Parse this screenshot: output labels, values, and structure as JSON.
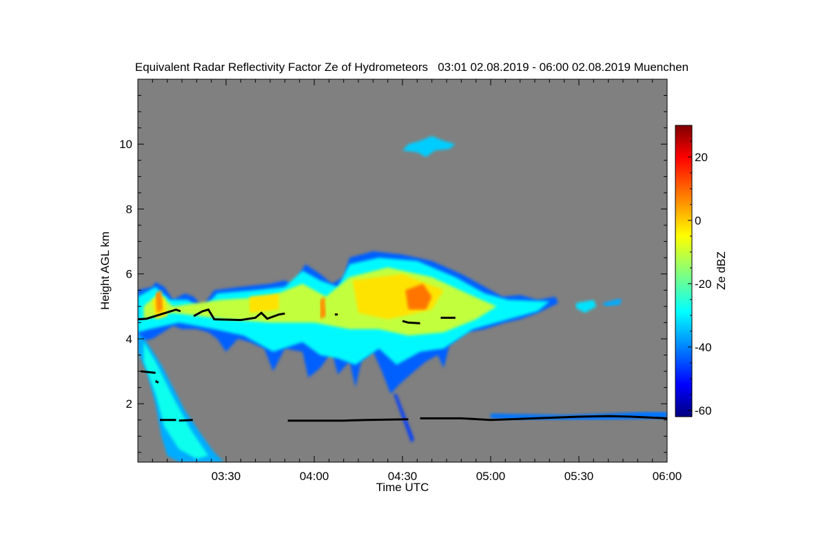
{
  "chart_data": {
    "type": "heatmap",
    "title": "Equivalent Radar Reflectivity Factor Ze of Hydrometeors   03:01 02.08.2019 - 06:00 02.08.2019 Muenchen",
    "xlabel": "Time UTC",
    "ylabel": "Height AGL km",
    "x_unit": "minutes after 03:00 UTC",
    "xlim": [
      0,
      180
    ],
    "ylim": [
      0.2,
      12
    ],
    "x_ticks": [
      {
        "v": 30,
        "label": "03:30"
      },
      {
        "v": 60,
        "label": "04:00"
      },
      {
        "v": 90,
        "label": "04:30"
      },
      {
        "v": 120,
        "label": "05:00"
      },
      {
        "v": 150,
        "label": "05:30"
      },
      {
        "v": 180,
        "label": "06:00"
      }
    ],
    "y_ticks": [
      {
        "v": 2,
        "label": "2"
      },
      {
        "v": 4,
        "label": "4"
      },
      {
        "v": 6,
        "label": "6"
      },
      {
        "v": 8,
        "label": "8"
      },
      {
        "v": 10,
        "label": "10"
      }
    ],
    "background_color": "#808080",
    "colorbar": {
      "label": "Ze dBZ",
      "range": [
        -62,
        30
      ],
      "colormap": "jet",
      "ticks": [
        {
          "v": 20,
          "label": "20"
        },
        {
          "v": 0,
          "label": "0"
        },
        {
          "v": -20,
          "label": "-20"
        },
        {
          "v": -40,
          "label": "-40"
        },
        {
          "v": -60,
          "label": "-60"
        }
      ]
    },
    "echo_regions": [
      {
        "name": "main-cloud-edge",
        "dbz": -42,
        "polygon": [
          [
            0,
            5.5
          ],
          [
            5,
            5.6
          ],
          [
            6,
            5.75
          ],
          [
            9,
            5.6
          ],
          [
            12,
            5.2
          ],
          [
            16,
            5.4
          ],
          [
            19,
            5.3
          ],
          [
            22,
            5.0
          ],
          [
            26,
            5.5
          ],
          [
            35,
            5.6
          ],
          [
            45,
            5.7
          ],
          [
            50,
            5.8
          ],
          [
            54,
            5.6
          ],
          [
            55,
            6.0
          ],
          [
            57,
            6.3
          ],
          [
            62,
            6.0
          ],
          [
            66,
            5.7
          ],
          [
            70,
            5.9
          ],
          [
            72,
            6.5
          ],
          [
            80,
            6.7
          ],
          [
            90,
            6.6
          ],
          [
            100,
            6.4
          ],
          [
            110,
            6.0
          ],
          [
            118,
            5.6
          ],
          [
            124,
            5.3
          ],
          [
            130,
            5.35
          ],
          [
            136,
            5.2
          ],
          [
            142,
            5.3
          ],
          [
            143,
            5.1
          ],
          [
            136,
            4.8
          ],
          [
            130,
            4.6
          ],
          [
            125,
            4.5
          ],
          [
            118,
            4.3
          ],
          [
            112,
            4.2
          ],
          [
            106,
            3.8
          ],
          [
            104,
            3.1
          ],
          [
            102,
            3.5
          ],
          [
            98,
            3.3
          ],
          [
            94,
            3.0
          ],
          [
            89,
            2.6
          ],
          [
            86,
            2.3
          ],
          [
            83,
            3.0
          ],
          [
            80,
            3.6
          ],
          [
            76,
            3.3
          ],
          [
            74,
            2.5
          ],
          [
            72,
            3.3
          ],
          [
            68,
            2.9
          ],
          [
            66,
            3.6
          ],
          [
            62,
            3.1
          ],
          [
            58,
            2.8
          ],
          [
            56,
            3.6
          ],
          [
            50,
            3.7
          ],
          [
            46,
            3.0
          ],
          [
            43,
            3.7
          ],
          [
            38,
            3.9
          ],
          [
            34,
            4.0
          ],
          [
            30,
            3.6
          ],
          [
            27,
            4.0
          ],
          [
            24,
            4.2
          ],
          [
            20,
            4.3
          ],
          [
            15,
            4.3
          ],
          [
            12,
            4.4
          ],
          [
            5,
            4.0
          ],
          [
            0,
            3.9
          ]
        ]
      },
      {
        "name": "main-cloud-body",
        "dbz": -28,
        "polygon": [
          [
            0,
            5.3
          ],
          [
            6,
            5.6
          ],
          [
            11,
            5.2
          ],
          [
            17,
            5.2
          ],
          [
            22,
            4.9
          ],
          [
            27,
            5.4
          ],
          [
            40,
            5.5
          ],
          [
            50,
            5.6
          ],
          [
            56,
            6.1
          ],
          [
            62,
            5.8
          ],
          [
            68,
            5.6
          ],
          [
            72,
            6.3
          ],
          [
            82,
            6.5
          ],
          [
            95,
            6.4
          ],
          [
            108,
            5.9
          ],
          [
            118,
            5.4
          ],
          [
            126,
            5.2
          ],
          [
            140,
            5.15
          ],
          [
            136,
            4.85
          ],
          [
            126,
            4.6
          ],
          [
            114,
            4.3
          ],
          [
            104,
            3.7
          ],
          [
            96,
            3.6
          ],
          [
            88,
            3.2
          ],
          [
            82,
            3.7
          ],
          [
            74,
            3.2
          ],
          [
            68,
            3.4
          ],
          [
            62,
            3.5
          ],
          [
            56,
            3.9
          ],
          [
            46,
            3.6
          ],
          [
            36,
            4.1
          ],
          [
            26,
            4.3
          ],
          [
            14,
            4.5
          ],
          [
            4,
            4.3
          ],
          [
            0,
            4.2
          ]
        ]
      },
      {
        "name": "main-cloud-core",
        "dbz": -10,
        "polygon": [
          [
            2,
            5.0
          ],
          [
            7,
            5.4
          ],
          [
            12,
            5.0
          ],
          [
            28,
            5.2
          ],
          [
            45,
            5.3
          ],
          [
            56,
            5.7
          ],
          [
            64,
            5.3
          ],
          [
            72,
            5.9
          ],
          [
            85,
            6.2
          ],
          [
            100,
            5.9
          ],
          [
            112,
            5.4
          ],
          [
            122,
            5.0
          ],
          [
            115,
            4.6
          ],
          [
            104,
            4.2
          ],
          [
            92,
            4.1
          ],
          [
            82,
            4.3
          ],
          [
            72,
            4.3
          ],
          [
            60,
            4.5
          ],
          [
            45,
            4.5
          ],
          [
            30,
            4.6
          ],
          [
            12,
            4.8
          ],
          [
            2,
            4.6
          ]
        ]
      },
      {
        "name": "core-yellow",
        "dbz": -2,
        "polygon": [
          [
            5,
            5.2
          ],
          [
            9,
            5.3
          ],
          [
            10,
            4.7
          ],
          [
            6,
            4.6
          ]
        ]
      },
      {
        "name": "core-yellow",
        "dbz": -2,
        "polygon": [
          [
            38,
            5.3
          ],
          [
            48,
            5.4
          ],
          [
            48,
            4.9
          ],
          [
            38,
            4.8
          ]
        ]
      },
      {
        "name": "core-yellow",
        "dbz": -2,
        "polygon": [
          [
            73,
            5.8
          ],
          [
            90,
            6.0
          ],
          [
            104,
            5.5
          ],
          [
            100,
            4.9
          ],
          [
            85,
            4.6
          ],
          [
            75,
            4.8
          ]
        ]
      },
      {
        "name": "core-orange",
        "dbz": 8,
        "polygon": [
          [
            91,
            5.5
          ],
          [
            97,
            5.7
          ],
          [
            100,
            5.3
          ],
          [
            98,
            4.9
          ],
          [
            92,
            4.9
          ]
        ]
      },
      {
        "name": "core-orange",
        "dbz": 6,
        "polygon": [
          [
            6,
            5.4
          ],
          [
            8,
            5.5
          ],
          [
            8.5,
            4.9
          ],
          [
            6.5,
            4.8
          ]
        ]
      },
      {
        "name": "core-orange",
        "dbz": 6,
        "polygon": [
          [
            62,
            5.2
          ],
          [
            63.5,
            5.3
          ],
          [
            64,
            4.7
          ],
          [
            62,
            4.6
          ]
        ]
      },
      {
        "name": "fallstreak-to-ground",
        "dbz": -35,
        "polygon": [
          [
            0,
            4.2
          ],
          [
            3,
            3.9
          ],
          [
            8,
            3.2
          ],
          [
            12,
            2.5
          ],
          [
            16,
            1.8
          ],
          [
            22,
            1.0
          ],
          [
            26,
            0.5
          ],
          [
            29.3,
            0.2
          ],
          [
            22,
            0.2
          ],
          [
            14,
            0.2
          ],
          [
            10,
            0.4
          ],
          [
            8,
            1.0
          ],
          [
            6,
            2.0
          ],
          [
            3,
            3.0
          ],
          [
            0,
            3.6
          ]
        ]
      },
      {
        "name": "fallstreak-core",
        "dbz": -26,
        "polygon": [
          [
            2,
            3.9
          ],
          [
            6,
            3.3
          ],
          [
            12,
            2.2
          ],
          [
            18,
            1.2
          ],
          [
            24,
            0.4
          ],
          [
            20,
            0.3
          ],
          [
            14,
            0.6
          ],
          [
            9,
            1.3
          ],
          [
            6,
            2.3
          ],
          [
            2,
            3.3
          ]
        ]
      },
      {
        "name": "upper-cloud",
        "dbz": -32,
        "polygon": [
          [
            90,
            9.8
          ],
          [
            92,
            10.0
          ],
          [
            96,
            10.1
          ],
          [
            100,
            10.25
          ],
          [
            104,
            10.1
          ],
          [
            108,
            10.0
          ],
          [
            106,
            9.85
          ],
          [
            101,
            9.8
          ],
          [
            98,
            9.6
          ],
          [
            95,
            9.75
          ]
        ]
      },
      {
        "name": "trailing-patch",
        "dbz": -30,
        "polygon": [
          [
            149,
            5.1
          ],
          [
            155,
            5.2
          ],
          [
            156,
            5.0
          ],
          [
            152,
            4.8
          ],
          [
            149,
            4.95
          ]
        ]
      },
      {
        "name": "trailing-patch",
        "dbz": -35,
        "polygon": [
          [
            158,
            5.1
          ],
          [
            164.5,
            5.25
          ],
          [
            164,
            5.05
          ],
          [
            159,
            5.0
          ]
        ]
      },
      {
        "name": "precip-streak",
        "dbz": -45,
        "polygon": [
          [
            87,
            2.3
          ],
          [
            88,
            2.3
          ],
          [
            94,
            0.9
          ],
          [
            93,
            0.8
          ]
        ]
      },
      {
        "name": "low-cloud",
        "dbz": -40,
        "polygon": [
          [
            120,
            1.7
          ],
          [
            145,
            1.65
          ],
          [
            160,
            1.7
          ],
          [
            172,
            1.75
          ],
          [
            180,
            1.75
          ],
          [
            180,
            1.55
          ],
          [
            160,
            1.5
          ],
          [
            130,
            1.5
          ],
          [
            120,
            1.55
          ]
        ]
      }
    ],
    "overlay_lines": [
      {
        "name": "melting-layer-line",
        "points": [
          [
            0,
            4.6
          ],
          [
            3,
            4.62
          ],
          [
            13,
            4.9
          ],
          [
            14.5,
            4.85
          ]
        ]
      },
      {
        "name": "melting-layer-line",
        "points": [
          [
            19,
            4.7
          ],
          [
            22,
            4.85
          ],
          [
            24,
            4.9
          ],
          [
            26,
            4.6
          ],
          [
            35,
            4.58
          ],
          [
            40,
            4.65
          ],
          [
            42,
            4.8
          ],
          [
            44,
            4.62
          ],
          [
            48,
            4.75
          ],
          [
            50,
            4.78
          ]
        ]
      },
      {
        "name": "melting-layer-line",
        "points": [
          [
            67,
            4.75
          ],
          [
            68,
            4.75
          ]
        ]
      },
      {
        "name": "melting-layer-line",
        "points": [
          [
            90,
            4.55
          ],
          [
            92,
            4.5
          ],
          [
            96,
            4.48
          ]
        ]
      },
      {
        "name": "melting-layer-line",
        "points": [
          [
            103,
            4.65
          ],
          [
            108,
            4.65
          ]
        ]
      },
      {
        "name": "cloud-base-line",
        "points": [
          [
            1,
            3.0
          ],
          [
            6,
            2.95
          ]
        ]
      },
      {
        "name": "cloud-base-line",
        "points": [
          [
            6,
            2.7
          ],
          [
            7,
            2.65
          ]
        ]
      },
      {
        "name": "cloud-base-line",
        "points": [
          [
            7.5,
            1.5
          ],
          [
            13,
            1.5
          ]
        ]
      },
      {
        "name": "cloud-base-line",
        "points": [
          [
            14,
            1.48
          ],
          [
            18.7,
            1.5
          ]
        ]
      },
      {
        "name": "cloud-base-line",
        "points": [
          [
            51,
            1.48
          ],
          [
            70,
            1.48
          ],
          [
            78,
            1.5
          ],
          [
            92,
            1.52
          ]
        ]
      },
      {
        "name": "cloud-base-line",
        "points": [
          [
            96,
            1.55
          ],
          [
            110,
            1.55
          ],
          [
            120,
            1.5
          ],
          [
            135,
            1.55
          ],
          [
            150,
            1.6
          ],
          [
            160,
            1.62
          ],
          [
            168,
            1.6
          ],
          [
            180,
            1.55
          ]
        ]
      }
    ]
  }
}
